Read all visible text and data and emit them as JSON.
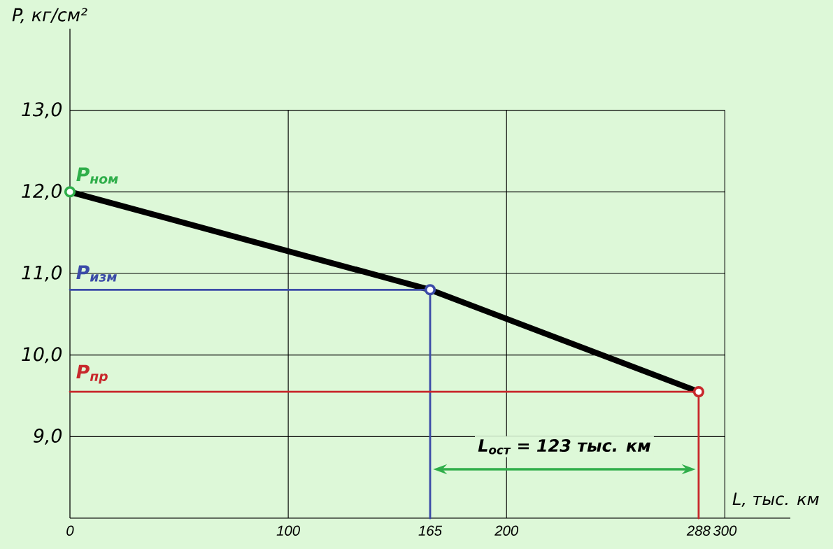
{
  "chart_data": {
    "type": "line",
    "xlabel": "L, тыс. км",
    "ylabel": "P, кг/см²",
    "xlim": [
      0,
      330
    ],
    "ylim": [
      8,
      14
    ],
    "xticks": [
      0,
      100,
      165,
      200,
      288,
      300
    ],
    "yticks": [
      {
        "value": 9,
        "label": "9,0"
      },
      {
        "value": 10,
        "label": "10,0"
      },
      {
        "value": 11,
        "label": "11,0"
      },
      {
        "value": 12,
        "label": "12,0"
      },
      {
        "value": 13,
        "label": "13,0"
      }
    ],
    "grid": true,
    "series": [
      {
        "color": "#000000",
        "x": [
          0,
          165,
          288
        ],
        "values": [
          12.0,
          10.8,
          9.55
        ]
      },
      {
        "color": "#3b4ba8",
        "x": [
          0,
          165,
          165
        ],
        "values": [
          10.8,
          10.8,
          8
        ]
      },
      {
        "color": "#c8282c",
        "x": [
          0,
          288,
          288
        ],
        "values": [
          9.55,
          9.55,
          8
        ]
      },
      {
        "type": "scatter",
        "color": "#2fae4a",
        "marker": "circle",
        "x": [
          0
        ],
        "values": [
          12.0
        ]
      },
      {
        "type": "scatter",
        "color": "#3b4ba8",
        "marker": "circle",
        "x": [
          165
        ],
        "values": [
          10.8
        ]
      },
      {
        "type": "scatter",
        "color": "#c8282c",
        "marker": "circle",
        "x": [
          288
        ],
        "values": [
          9.55
        ]
      }
    ],
    "annotations": [
      "P$_{ном}$",
      "P$_{изм}$",
      "P$_{пр}$",
      "L$_{ост}$ = 123 тыс. км"
    ]
  }
}
